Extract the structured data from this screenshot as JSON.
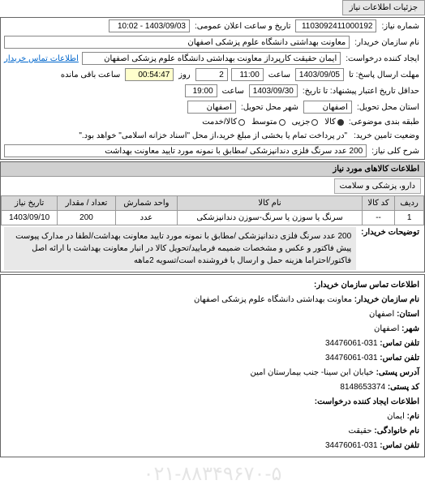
{
  "header": {
    "tab_label": "جزئیات اطلاعات نیاز"
  },
  "info": {
    "number_label": "شماره نیاز:",
    "number_value": "1103092411000192",
    "announce_label": "تاریخ و ساعت اعلان عمومی:",
    "announce_value": "1403/09/03 - 10:02",
    "buyer_label": "نام سازمان خریدار:",
    "buyer_value": "معاونت بهداشتی دانشگاه علوم پزشکی اصفهان",
    "creator_label": "ایجاد کننده درخواست:",
    "creator_value": "ایمان حقیقت کارپرداز معاونت بهداشتی دانشگاه علوم پزشکی اصفهان",
    "contact_link": "اطلاعات تماس خریدار",
    "deadline_label": "مهلت ارسال پاسخ: تا",
    "deadline_date": "1403/09/05",
    "time_label": "ساعت",
    "deadline_time": "11:00",
    "days_label": "روز",
    "days_value": "2",
    "remaining_time": "00:54:47",
    "remaining_label": "ساعت باقی مانده",
    "validity_label": "حداقل تاریخ اعتبار پیشنهاد: تا تاریخ:",
    "validity_date": "1403/09/30",
    "validity_time": "19:00",
    "delivery_loc_label": "استان محل تحویل:",
    "delivery_loc_value": "اصفهان",
    "delivery_city_label": "شهر محل تحویل:",
    "delivery_city_value": "اصفهان",
    "budget_label": "طبقه بندی موضوعی:",
    "budget_opts": {
      "kala": "کالا",
      "jozi": "جزیی",
      "motavaset": "متوسط",
      "kala_khidmat": "کالا/خدمت"
    },
    "guarantee_label": "وضعیت تامین خرید:",
    "guarantee_text": "\"در پرداخت تمام یا بخشی از مبلغ خرید،از محل \"اسناد خزانه اسلامی\" خواهد بود.\"",
    "desc_label": "شرح کلی نیاز:",
    "desc_value": "200 عدد سرنگ فلزی دندانپزشکی /مطابق با نمونه مورد تایید معاونت بهداشت"
  },
  "goods": {
    "section_title": "اطلاعات کالاهای مورد نیاز",
    "category": "دارو، پزشکی و سلامت",
    "columns": {
      "row": "ردیف",
      "code": "کد کالا",
      "name": "نام کالا",
      "unit": "واحد شمارش",
      "qty": "تعداد / مقدار",
      "date": "تاریخ نیاز"
    },
    "rows": [
      {
        "idx": "1",
        "code": "--",
        "name": "سرنگ یا سوزن یا سرنگ-سوزن دندانپزشکی",
        "unit": "عدد",
        "qty": "200",
        "date": "1403/09/10"
      }
    ],
    "buyer_notes_label": "توضیحات خریدار:",
    "buyer_notes": "200 عدد سرنگ فلزی دندانپزشکی /مطابق با نمونه مورد تایید معاونت بهداشت/لطفا در مدارک پیوست پیش فاکتور و عکس و مشخصات ضمیمه فرمایید/تحویل کالا در انبار معاونت بهداشت با ارائه اصل فاکتور/احتراما هزینه حمل و ارسال با فروشنده است/تسویه 2ماهه"
  },
  "footer": {
    "contact_title": "اطلاعات تماس سازمان خریدار:",
    "org_label": "نام سازمان خریدار:",
    "org_value": "معاونت بهداشتی دانشگاه علوم پزشکی اصفهان",
    "province_label": "استان:",
    "province_value": "اصفهان",
    "city_label": "شهر:",
    "city_value": "اصفهان",
    "phone_label": "تلفن تماس:",
    "phone_value": "031-34476061",
    "fax_label": "تلفن تماس:",
    "fax_value": "031-34476061",
    "address_label": "آدرس پستی:",
    "address_value": "خیابان ابن سینا- جنب بیمارستان امین",
    "postal_label": "کد پستی:",
    "postal_value": "8148653374",
    "req_contact_title": "اطلاعات ایجاد کننده درخواست:",
    "name_label": "نام:",
    "name_value": "ایمان",
    "lastname_label": "نام خانوادگی:",
    "lastname_value": "حقیقت",
    "req_phone_label": "تلفن تماس:",
    "req_phone_value": "031-34476061"
  },
  "watermark": "۰۲۱-۸۸۳۴۹۶۷۰-۵"
}
